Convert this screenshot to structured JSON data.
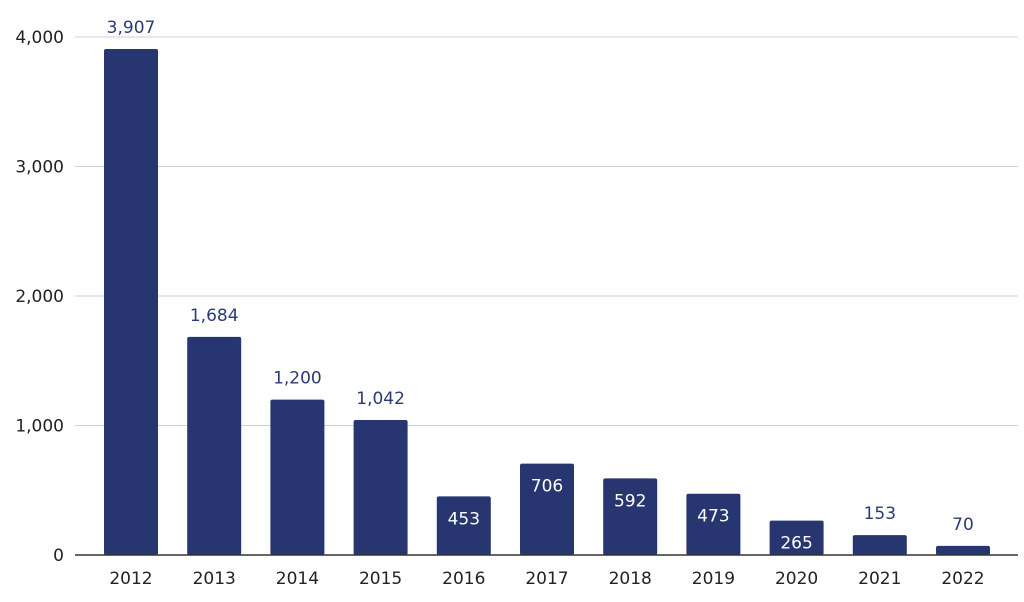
{
  "chart_data": {
    "type": "bar",
    "categories": [
      "2012",
      "2013",
      "2014",
      "2015",
      "2016",
      "2017",
      "2018",
      "2019",
      "2020",
      "2021",
      "2022"
    ],
    "values": [
      3907,
      1684,
      1200,
      1042,
      453,
      706,
      592,
      473,
      265,
      153,
      70
    ],
    "value_labels": [
      "3,907",
      "1,684",
      "1,200",
      "1,042",
      "453",
      "706",
      "592",
      "473",
      "265",
      "153",
      "70"
    ],
    "label_inside": [
      false,
      false,
      false,
      false,
      true,
      true,
      true,
      true,
      true,
      false,
      false
    ],
    "ylim": [
      0,
      4000
    ],
    "yticks": [
      0,
      1000,
      2000,
      3000,
      4000
    ],
    "ytick_labels": [
      "0",
      "1,000",
      "2,000",
      "3,000",
      "4,000"
    ],
    "grid": true,
    "legend": "none",
    "title": "",
    "xlabel": "",
    "ylabel": "",
    "colors": {
      "bar": "#273670",
      "label_outside": "#2b3a78",
      "label_inside": "#ffffff",
      "grid": "#d0d0d0",
      "axis": "#333333"
    }
  }
}
